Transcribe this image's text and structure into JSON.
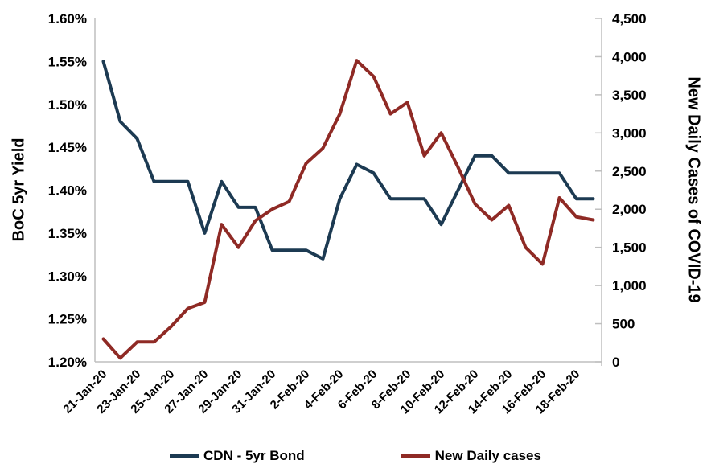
{
  "colors": {
    "background": "#ffffff",
    "axis_line": "#bfbfbf",
    "text": "#000000",
    "bond_line": "#1c3a52",
    "cases_line": "#8f2a25"
  },
  "legend": {
    "bond_label": "CDN - 5yr Bond",
    "cases_label": "New Daily cases"
  },
  "chart_data": {
    "type": "line",
    "title": "",
    "grid": false,
    "legend_position": "bottom",
    "x": [
      "21-Jan-20",
      "22-Jan-20",
      "23-Jan-20",
      "24-Jan-20",
      "25-Jan-20",
      "26-Jan-20",
      "27-Jan-20",
      "28-Jan-20",
      "29-Jan-20",
      "30-Jan-20",
      "31-Jan-20",
      "1-Feb-20",
      "2-Feb-20",
      "3-Feb-20",
      "4-Feb-20",
      "5-Feb-20",
      "6-Feb-20",
      "7-Feb-20",
      "8-Feb-20",
      "9-Feb-20",
      "10-Feb-20",
      "11-Feb-20",
      "12-Feb-20",
      "13-Feb-20",
      "14-Feb-20",
      "15-Feb-20",
      "16-Feb-20",
      "17-Feb-20",
      "18-Feb-20",
      "19-Feb-20"
    ],
    "x_axis": {
      "shown_tick_labels": [
        "21-Jan-20",
        "23-Jan-20",
        "25-Jan-20",
        "27-Jan-20",
        "29-Jan-20",
        "31-Jan-20",
        "2-Feb-20",
        "4-Feb-20",
        "6-Feb-20",
        "8-Feb-20",
        "10-Feb-20",
        "12-Feb-20",
        "14-Feb-20",
        "16-Feb-20",
        "18-Feb-20"
      ],
      "label_every": 2,
      "rotation_deg": -45
    },
    "left_axis": {
      "title": "BoC 5yr Yield",
      "min": 1.2,
      "max": 1.6,
      "ticks": [
        1.6,
        1.55,
        1.5,
        1.45,
        1.4,
        1.35,
        1.3,
        1.25,
        1.2
      ],
      "tick_labels": [
        "1.60%",
        "1.55%",
        "1.50%",
        "1.45%",
        "1.40%",
        "1.35%",
        "1.30%",
        "1.25%",
        "1.20%"
      ]
    },
    "right_axis": {
      "title": "New Daily Cases of COVID-19",
      "min": 0,
      "max": 4500,
      "ticks": [
        4500,
        4000,
        3500,
        3000,
        2500,
        2000,
        1500,
        1000,
        500,
        0
      ],
      "tick_labels": [
        "4,500",
        "4,000",
        "3,500",
        "3,000",
        "2,500",
        "2,000",
        "1,500",
        "1,000",
        "500",
        "0"
      ]
    },
    "series": [
      {
        "name": "CDN - 5yr Bond",
        "axis": "left",
        "color": "#1c3a52",
        "values": [
          1.55,
          1.48,
          1.46,
          1.41,
          1.41,
          1.41,
          1.35,
          1.41,
          1.38,
          1.38,
          1.33,
          1.33,
          1.33,
          1.32,
          1.39,
          1.43,
          1.42,
          1.39,
          1.39,
          1.39,
          1.36,
          1.4,
          1.44,
          1.44,
          1.42,
          1.42,
          1.42,
          1.42,
          1.39,
          1.39
        ]
      },
      {
        "name": "New Daily cases",
        "axis": "right",
        "color": "#8f2a25",
        "values": [
          300,
          50,
          260,
          260,
          460,
          700,
          780,
          1800,
          1500,
          1850,
          2000,
          2100,
          2600,
          2800,
          3250,
          3950,
          3740,
          3250,
          3400,
          2700,
          3000,
          2550,
          2070,
          1860,
          2050,
          1500,
          1280,
          2150,
          1900,
          1860
        ]
      }
    ]
  }
}
